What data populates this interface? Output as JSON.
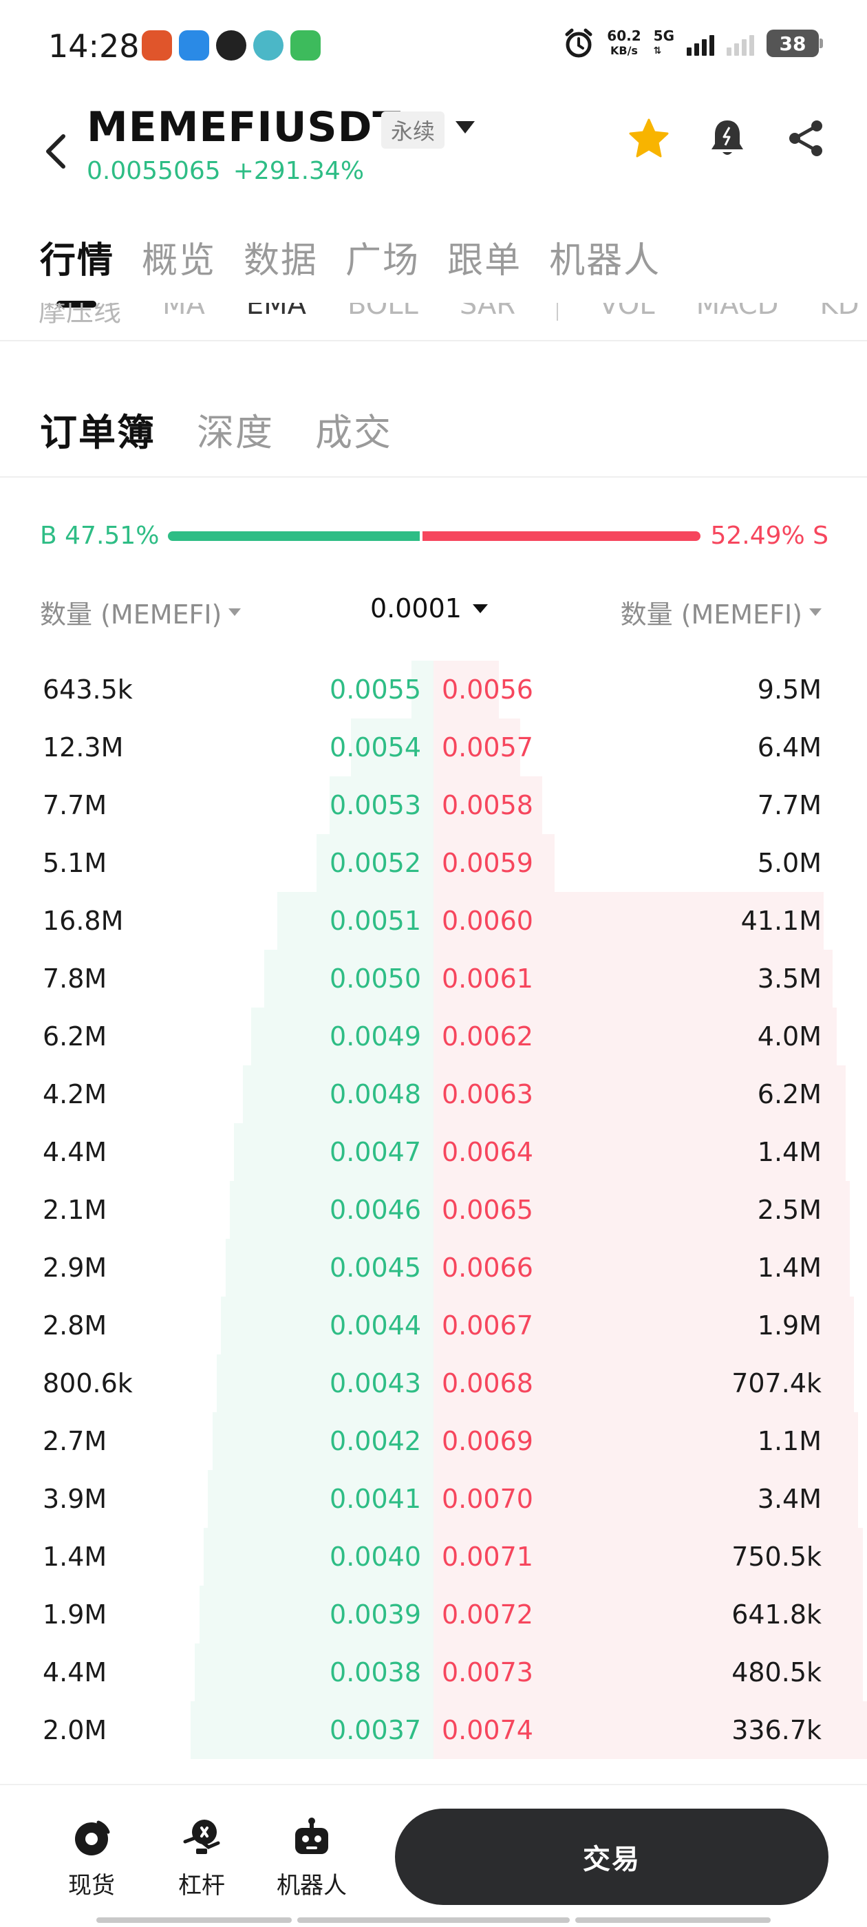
{
  "status": {
    "time": "14:28",
    "net_speed_value": "60.2",
    "net_speed_unit": "KB/s",
    "network": "5G",
    "battery": "38"
  },
  "header": {
    "symbol": "MEMEFIUSDT",
    "contract_type": "永续",
    "last_price": "0.0055065",
    "change_pct": "+291.34%"
  },
  "main_tabs": [
    "行情",
    "概览",
    "数据",
    "广场",
    "跟单",
    "机器人"
  ],
  "indicators": [
    "摩压线",
    "MA",
    "EMA",
    "BOLL",
    "SAR",
    "VOL",
    "MACD",
    "KD"
  ],
  "orderbook_tabs": [
    "订单簿",
    "深度",
    "成交"
  ],
  "ratio": {
    "buy_label": "B 47.51%",
    "sell_label": "52.49% S",
    "buy_fraction": 0.4751
  },
  "columns": {
    "left": "数量 (MEMEFI)",
    "precision": "0.0001",
    "right": "数量 (MEMEFI)"
  },
  "book": [
    {
      "bid_qty": "643.5k",
      "bid_price": "0.0055",
      "ask_price": "0.0056",
      "ask_qty": "9.5M",
      "bid_depth": 0.05,
      "ask_depth": 0.15
    },
    {
      "bid_qty": "12.3M",
      "bid_price": "0.0054",
      "ask_price": "0.0057",
      "ask_qty": "6.4M",
      "bid_depth": 0.19,
      "ask_depth": 0.2
    },
    {
      "bid_qty": "7.7M",
      "bid_price": "0.0053",
      "ask_price": "0.0058",
      "ask_qty": "7.7M",
      "bid_depth": 0.24,
      "ask_depth": 0.25
    },
    {
      "bid_qty": "5.1M",
      "bid_price": "0.0052",
      "ask_price": "0.0059",
      "ask_qty": "5.0M",
      "bid_depth": 0.27,
      "ask_depth": 0.28
    },
    {
      "bid_qty": "16.8M",
      "bid_price": "0.0051",
      "ask_price": "0.0060",
      "ask_qty": "41.1M",
      "bid_depth": 0.36,
      "ask_depth": 0.9
    },
    {
      "bid_qty": "7.8M",
      "bid_price": "0.0050",
      "ask_price": "0.0061",
      "ask_qty": "3.5M",
      "bid_depth": 0.39,
      "ask_depth": 0.92
    },
    {
      "bid_qty": "6.2M",
      "bid_price": "0.0049",
      "ask_price": "0.0062",
      "ask_qty": "4.0M",
      "bid_depth": 0.42,
      "ask_depth": 0.93
    },
    {
      "bid_qty": "4.2M",
      "bid_price": "0.0048",
      "ask_price": "0.0063",
      "ask_qty": "6.2M",
      "bid_depth": 0.44,
      "ask_depth": 0.95
    },
    {
      "bid_qty": "4.4M",
      "bid_price": "0.0047",
      "ask_price": "0.0064",
      "ask_qty": "1.4M",
      "bid_depth": 0.46,
      "ask_depth": 0.95
    },
    {
      "bid_qty": "2.1M",
      "bid_price": "0.0046",
      "ask_price": "0.0065",
      "ask_qty": "2.5M",
      "bid_depth": 0.47,
      "ask_depth": 0.96
    },
    {
      "bid_qty": "2.9M",
      "bid_price": "0.0045",
      "ask_price": "0.0066",
      "ask_qty": "1.4M",
      "bid_depth": 0.48,
      "ask_depth": 0.96
    },
    {
      "bid_qty": "2.8M",
      "bid_price": "0.0044",
      "ask_price": "0.0067",
      "ask_qty": "1.9M",
      "bid_depth": 0.49,
      "ask_depth": 0.97
    },
    {
      "bid_qty": "800.6k",
      "bid_price": "0.0043",
      "ask_price": "0.0068",
      "ask_qty": "707.4k",
      "bid_depth": 0.5,
      "ask_depth": 0.97
    },
    {
      "bid_qty": "2.7M",
      "bid_price": "0.0042",
      "ask_price": "0.0069",
      "ask_qty": "1.1M",
      "bid_depth": 0.51,
      "ask_depth": 0.98
    },
    {
      "bid_qty": "3.9M",
      "bid_price": "0.0041",
      "ask_price": "0.0070",
      "ask_qty": "3.4M",
      "bid_depth": 0.52,
      "ask_depth": 0.98
    },
    {
      "bid_qty": "1.4M",
      "bid_price": "0.0040",
      "ask_price": "0.0071",
      "ask_qty": "750.5k",
      "bid_depth": 0.53,
      "ask_depth": 0.99
    },
    {
      "bid_qty": "1.9M",
      "bid_price": "0.0039",
      "ask_price": "0.0072",
      "ask_qty": "641.8k",
      "bid_depth": 0.54,
      "ask_depth": 0.99
    },
    {
      "bid_qty": "4.4M",
      "bid_price": "0.0038",
      "ask_price": "0.0073",
      "ask_qty": "480.5k",
      "bid_depth": 0.55,
      "ask_depth": 0.99
    },
    {
      "bid_qty": "2.0M",
      "bid_price": "0.0037",
      "ask_price": "0.0074",
      "ask_qty": "336.7k",
      "bid_depth": 0.56,
      "ask_depth": 1.0
    }
  ],
  "bottom_nav": {
    "spot": "现货",
    "margin": "杠杆",
    "bot": "机器人",
    "trade": "交易"
  },
  "colors": {
    "buy": "#2ebd85",
    "sell": "#f6465d",
    "star": "#f8b400"
  },
  "icons": [
    "back-icon",
    "dropdown-arrow-icon",
    "star-icon",
    "alarm-bell-icon",
    "share-icon",
    "spot-icon",
    "margin-icon",
    "robot-icon"
  ]
}
